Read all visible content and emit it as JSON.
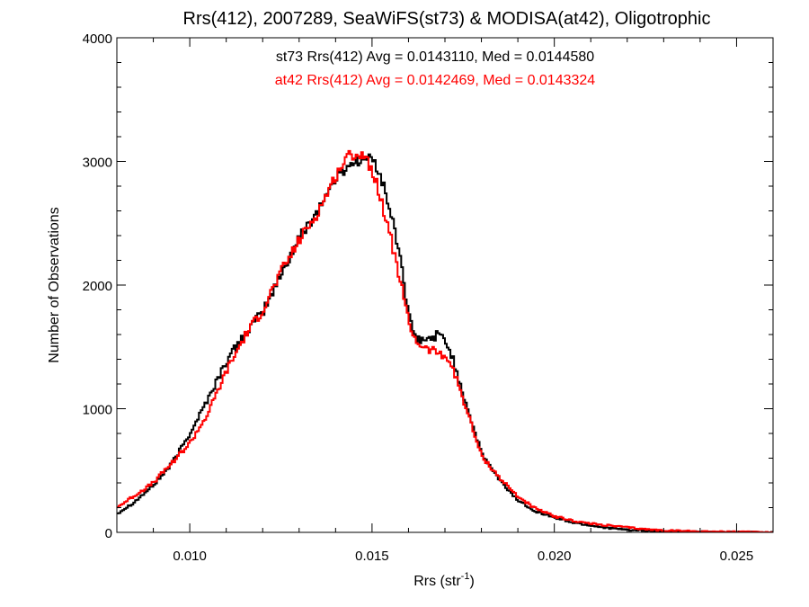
{
  "chart_data": {
    "type": "line",
    "title": "Rrs(412), 2007289, SeaWiFS(st73) & MODISA(at42), Oligotrophic",
    "xlabel": {
      "base": "Rrs (str",
      "sup": "-1",
      "tail": ")"
    },
    "ylabel": "Number of Observations",
    "xlim": [
      0.008,
      0.026
    ],
    "ylim": [
      0,
      4000
    ],
    "grid": false,
    "x_ticks": [
      {
        "value": 0.01,
        "label": "0.010"
      },
      {
        "value": 0.015,
        "label": "0.015"
      },
      {
        "value": 0.02,
        "label": "0.020"
      },
      {
        "value": 0.025,
        "label": "0.025"
      }
    ],
    "y_ticks": [
      {
        "value": 0,
        "label": "0"
      },
      {
        "value": 1000,
        "label": "1000"
      },
      {
        "value": 2000,
        "label": "2000"
      },
      {
        "value": 3000,
        "label": "3000"
      },
      {
        "value": 4000,
        "label": "4000"
      }
    ],
    "series": [
      {
        "name": "st73",
        "color": "#000000",
        "stats_label": "st73 Rrs(412) Avg = 0.0143110, Med = 0.0144580",
        "x": [
          0.008,
          0.0085,
          0.009,
          0.0095,
          0.01,
          0.0105,
          0.011,
          0.0115,
          0.012,
          0.0125,
          0.013,
          0.0135,
          0.014,
          0.0143,
          0.0145,
          0.0148,
          0.015,
          0.0152,
          0.0155,
          0.0158,
          0.016,
          0.0162,
          0.0165,
          0.0168,
          0.017,
          0.0172,
          0.0175,
          0.0178,
          0.018,
          0.0185,
          0.019,
          0.0195,
          0.02,
          0.0205,
          0.021,
          0.0215,
          0.022,
          0.0225,
          0.023,
          0.024,
          0.025,
          0.026
        ],
        "values": [
          150,
          250,
          380,
          550,
          800,
          1080,
          1380,
          1600,
          1780,
          2080,
          2380,
          2600,
          2860,
          2950,
          3000,
          3020,
          3020,
          2920,
          2600,
          2200,
          1750,
          1560,
          1550,
          1600,
          1560,
          1420,
          1120,
          830,
          640,
          420,
          260,
          170,
          120,
          80,
          55,
          35,
          20,
          12,
          8,
          4,
          2,
          1
        ]
      },
      {
        "name": "at42",
        "color": "#ff0000",
        "stats_label": "at42 Rrs(412) Avg = 0.0142469, Med = 0.0143324",
        "x": [
          0.008,
          0.0085,
          0.009,
          0.0095,
          0.01,
          0.0105,
          0.011,
          0.0115,
          0.012,
          0.0125,
          0.013,
          0.0135,
          0.014,
          0.0143,
          0.0145,
          0.0148,
          0.015,
          0.0152,
          0.0155,
          0.0158,
          0.016,
          0.0162,
          0.0165,
          0.0168,
          0.017,
          0.0172,
          0.0175,
          0.0178,
          0.018,
          0.0185,
          0.019,
          0.0195,
          0.02,
          0.0205,
          0.021,
          0.0215,
          0.022,
          0.0225,
          0.023,
          0.024,
          0.025,
          0.026
        ],
        "values": [
          200,
          300,
          400,
          560,
          720,
          960,
          1300,
          1580,
          1800,
          2100,
          2360,
          2580,
          2880,
          3030,
          3060,
          3050,
          2930,
          2750,
          2400,
          2000,
          1700,
          1550,
          1480,
          1460,
          1430,
          1340,
          1080,
          800,
          620,
          440,
          290,
          190,
          130,
          95,
          70,
          55,
          40,
          25,
          15,
          8,
          3,
          1
        ]
      }
    ]
  }
}
